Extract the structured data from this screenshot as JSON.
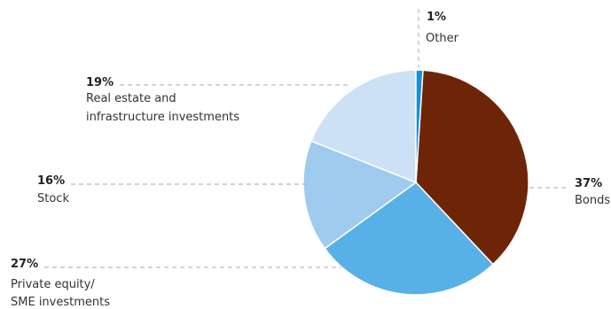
{
  "chart_data": {
    "type": "pie",
    "title": "",
    "slices": [
      {
        "name": "Bonds",
        "value": 37,
        "label": "37%",
        "color": "#6e2507"
      },
      {
        "name": "Private equity/ SME investments",
        "value": 27,
        "label": "27%",
        "color": "#58b1e6"
      },
      {
        "name": "Stock",
        "value": 16,
        "label": "16%",
        "color": "#9ecbee"
      },
      {
        "name": "Real estate and infrastructure investments",
        "value": 19,
        "label": "19%",
        "color": "#cce1f5"
      },
      {
        "name": "Other",
        "value": 1,
        "label": "1%",
        "color": "#1a8fd1"
      }
    ]
  },
  "labels": {
    "bonds": {
      "pct": "37%",
      "line1": "Bonds"
    },
    "private_equity": {
      "pct": "27%",
      "line1": "Private equity/",
      "line2": "SME investments"
    },
    "stock": {
      "pct": "16%",
      "line1": "Stock"
    },
    "real_estate": {
      "pct": "19%",
      "line1": "Real estate and",
      "line2": "infrastructure investments"
    },
    "other": {
      "pct": "1%",
      "line1": "Other"
    }
  }
}
